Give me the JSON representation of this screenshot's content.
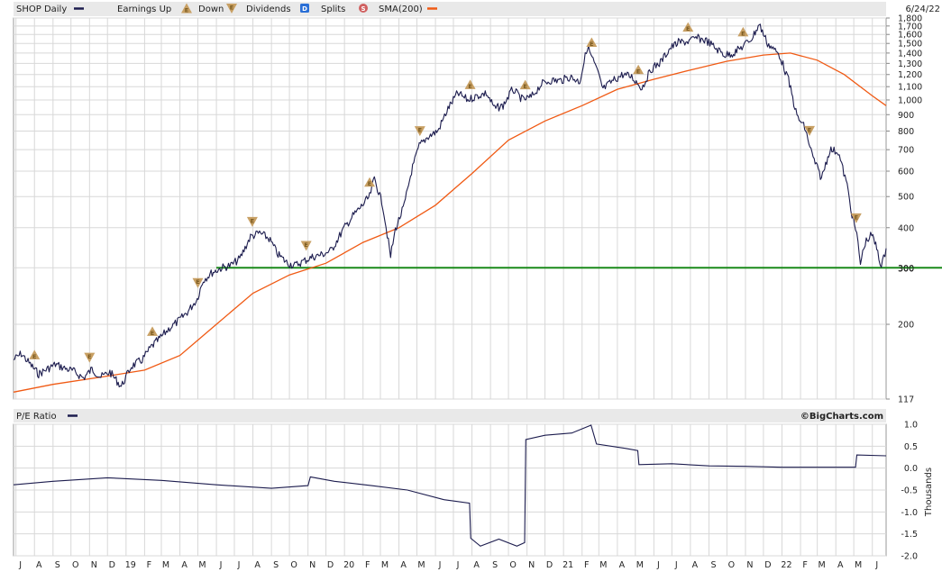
{
  "header": {
    "ticker_label": "SHOP Daily",
    "earnings_label": "Earnings Up",
    "down_label": "Down",
    "dividends_label": "Dividends",
    "splits_label": "Splits",
    "sma_label": "SMA(200)",
    "date": "6/24/22",
    "price_line_color": "#1c1c4e",
    "sma_color": "#f05a14",
    "support_line_color": "#1a8a1a",
    "earnings_icon_color": "#c8a064",
    "dividend_icon_color": "#2a6fd6",
    "split_icon_color": "#d06060",
    "earnings_icon_glyph": "E",
    "dividend_icon_glyph": "D",
    "split_icon_glyph": "S"
  },
  "lower_panel": {
    "title": "P/E Ratio",
    "brand": "©BigCharts.com",
    "y_axis_title": "Thousands"
  },
  "chart_data": [
    {
      "type": "line",
      "title": "SHOP Daily",
      "scale": "log",
      "ylim": [
        117,
        1800
      ],
      "y_ticks": [
        117,
        200,
        300,
        400,
        500,
        600,
        700,
        800,
        900,
        1000,
        1100,
        1200,
        1300,
        1400,
        1500,
        1600,
        1700,
        1800
      ],
      "y_tick_labels": [
        "117",
        "200",
        "300",
        "400",
        "500",
        "600",
        "700",
        "800",
        "900",
        "1,000",
        "1,100",
        "1,200",
        "1,300",
        "1,400",
        "1,500",
        "1,600",
        "1,700",
        "1,800"
      ],
      "x_range": [
        "2018-06-27",
        "2022-06-24"
      ],
      "x_tick_labels": [
        {
          "date": "2018-07-01",
          "label": "J"
        },
        {
          "date": "2018-08-01",
          "label": "A"
        },
        {
          "date": "2018-09-01",
          "label": "S"
        },
        {
          "date": "2018-10-01",
          "label": "O"
        },
        {
          "date": "2018-11-01",
          "label": "N"
        },
        {
          "date": "2018-12-01",
          "label": "D"
        },
        {
          "date": "2019-01-01",
          "label": "19"
        },
        {
          "date": "2019-02-01",
          "label": "F"
        },
        {
          "date": "2019-03-01",
          "label": "M"
        },
        {
          "date": "2019-04-01",
          "label": "A"
        },
        {
          "date": "2019-05-01",
          "label": "M"
        },
        {
          "date": "2019-06-01",
          "label": "J"
        },
        {
          "date": "2019-07-01",
          "label": "J"
        },
        {
          "date": "2019-08-01",
          "label": "A"
        },
        {
          "date": "2019-09-01",
          "label": "S"
        },
        {
          "date": "2019-10-01",
          "label": "O"
        },
        {
          "date": "2019-11-01",
          "label": "N"
        },
        {
          "date": "2019-12-01",
          "label": "D"
        },
        {
          "date": "2020-01-01",
          "label": "20"
        },
        {
          "date": "2020-02-01",
          "label": "F"
        },
        {
          "date": "2020-03-01",
          "label": "M"
        },
        {
          "date": "2020-04-01",
          "label": "A"
        },
        {
          "date": "2020-05-01",
          "label": "M"
        },
        {
          "date": "2020-06-01",
          "label": "J"
        },
        {
          "date": "2020-07-01",
          "label": "J"
        },
        {
          "date": "2020-08-01",
          "label": "A"
        },
        {
          "date": "2020-09-01",
          "label": "S"
        },
        {
          "date": "2020-10-01",
          "label": "O"
        },
        {
          "date": "2020-11-01",
          "label": "N"
        },
        {
          "date": "2020-12-01",
          "label": "D"
        },
        {
          "date": "2021-01-01",
          "label": "21"
        },
        {
          "date": "2021-02-01",
          "label": "F"
        },
        {
          "date": "2021-03-01",
          "label": "M"
        },
        {
          "date": "2021-04-01",
          "label": "A"
        },
        {
          "date": "2021-05-01",
          "label": "M"
        },
        {
          "date": "2021-06-01",
          "label": "J"
        },
        {
          "date": "2021-07-01",
          "label": "J"
        },
        {
          "date": "2021-08-01",
          "label": "A"
        },
        {
          "date": "2021-09-01",
          "label": "S"
        },
        {
          "date": "2021-10-01",
          "label": "O"
        },
        {
          "date": "2021-11-01",
          "label": "N"
        },
        {
          "date": "2021-12-01",
          "label": "D"
        },
        {
          "date": "2022-01-01",
          "label": "22"
        },
        {
          "date": "2022-02-01",
          "label": "F"
        },
        {
          "date": "2022-03-01",
          "label": "M"
        },
        {
          "date": "2022-04-01",
          "label": "A"
        },
        {
          "date": "2022-05-01",
          "label": "M"
        },
        {
          "date": "2022-06-01",
          "label": "J"
        }
      ],
      "reference_line": {
        "y": 300,
        "label": "300"
      },
      "series": [
        {
          "name": "SHOP Daily",
          "points": [
            [
              "2018-06-27",
              155
            ],
            [
              "2018-07-10",
              162
            ],
            [
              "2018-07-25",
              150
            ],
            [
              "2018-08-08",
              140
            ],
            [
              "2018-08-22",
              145
            ],
            [
              "2018-09-05",
              150
            ],
            [
              "2018-09-20",
              146
            ],
            [
              "2018-10-05",
              143
            ],
            [
              "2018-10-22",
              136
            ],
            [
              "2018-11-05",
              145
            ],
            [
              "2018-11-20",
              137
            ],
            [
              "2018-12-05",
              142
            ],
            [
              "2018-12-24",
              128
            ],
            [
              "2019-01-10",
              148
            ],
            [
              "2019-01-28",
              155
            ],
            [
              "2019-02-12",
              170
            ],
            [
              "2019-02-28",
              182
            ],
            [
              "2019-03-15",
              195
            ],
            [
              "2019-03-30",
              205
            ],
            [
              "2019-04-15",
              220
            ],
            [
              "2019-04-30",
              240
            ],
            [
              "2019-05-10",
              275
            ],
            [
              "2019-05-25",
              290
            ],
            [
              "2019-06-10",
              300
            ],
            [
              "2019-06-25",
              305
            ],
            [
              "2019-07-10",
              320
            ],
            [
              "2019-07-28",
              375
            ],
            [
              "2019-08-12",
              385
            ],
            [
              "2019-08-28",
              370
            ],
            [
              "2019-09-12",
              330
            ],
            [
              "2019-09-28",
              310
            ],
            [
              "2019-10-10",
              305
            ],
            [
              "2019-10-25",
              315
            ],
            [
              "2019-11-10",
              325
            ],
            [
              "2019-11-25",
              330
            ],
            [
              "2019-12-10",
              340
            ],
            [
              "2019-12-31",
              398
            ],
            [
              "2020-01-15",
              435
            ],
            [
              "2020-01-31",
              470
            ],
            [
              "2020-02-12",
              500
            ],
            [
              "2020-02-20",
              570
            ],
            [
              "2020-03-05",
              470
            ],
            [
              "2020-03-18",
              325
            ],
            [
              "2020-03-26",
              395
            ],
            [
              "2020-04-10",
              470
            ],
            [
              "2020-04-22",
              600
            ],
            [
              "2020-05-05",
              720
            ],
            [
              "2020-05-20",
              770
            ],
            [
              "2020-06-05",
              800
            ],
            [
              "2020-06-22",
              940
            ],
            [
              "2020-07-08",
              1050
            ],
            [
              "2020-07-25",
              1000
            ],
            [
              "2020-08-10",
              1030
            ],
            [
              "2020-08-25",
              1050
            ],
            [
              "2020-09-08",
              940
            ],
            [
              "2020-09-22",
              960
            ],
            [
              "2020-10-08",
              1080
            ],
            [
              "2020-10-25",
              1000
            ],
            [
              "2020-11-08",
              1020
            ],
            [
              "2020-11-25",
              1120
            ],
            [
              "2020-12-10",
              1150
            ],
            [
              "2020-12-28",
              1150
            ],
            [
              "2021-01-12",
              1180
            ],
            [
              "2021-01-28",
              1140
            ],
            [
              "2021-02-10",
              1470
            ],
            [
              "2021-02-25",
              1250
            ],
            [
              "2021-03-08",
              1080
            ],
            [
              "2021-03-25",
              1150
            ],
            [
              "2021-04-10",
              1200
            ],
            [
              "2021-04-25",
              1180
            ],
            [
              "2021-05-12",
              1090
            ],
            [
              "2021-05-28",
              1250
            ],
            [
              "2021-06-12",
              1310
            ],
            [
              "2021-06-28",
              1450
            ],
            [
              "2021-07-12",
              1510
            ],
            [
              "2021-07-28",
              1520
            ],
            [
              "2021-08-12",
              1560
            ],
            [
              "2021-08-28",
              1530
            ],
            [
              "2021-09-12",
              1450
            ],
            [
              "2021-09-28",
              1380
            ],
            [
              "2021-10-12",
              1400
            ],
            [
              "2021-10-28",
              1470
            ],
            [
              "2021-11-12",
              1560
            ],
            [
              "2021-11-24",
              1720
            ],
            [
              "2021-12-08",
              1500
            ],
            [
              "2021-12-28",
              1380
            ],
            [
              "2022-01-12",
              1150
            ],
            [
              "2022-01-26",
              890
            ],
            [
              "2022-02-08",
              820
            ],
            [
              "2022-02-22",
              660
            ],
            [
              "2022-03-08",
              570
            ],
            [
              "2022-03-22",
              700
            ],
            [
              "2022-04-05",
              690
            ],
            [
              "2022-04-20",
              540
            ],
            [
              "2022-04-28",
              440
            ],
            [
              "2022-05-06",
              380
            ],
            [
              "2022-05-12",
              310
            ],
            [
              "2022-05-20",
              360
            ],
            [
              "2022-05-31",
              380
            ],
            [
              "2022-06-10",
              340
            ],
            [
              "2022-06-16",
              300
            ],
            [
              "2022-06-24",
              345
            ]
          ]
        },
        {
          "name": "SMA(200)",
          "points": [
            [
              "2018-06-27",
              123
            ],
            [
              "2018-09-01",
              130
            ],
            [
              "2018-12-01",
              138
            ],
            [
              "2019-02-01",
              144
            ],
            [
              "2019-04-01",
              160
            ],
            [
              "2019-06-01",
              200
            ],
            [
              "2019-08-01",
              250
            ],
            [
              "2019-10-01",
              285
            ],
            [
              "2019-12-01",
              310
            ],
            [
              "2020-02-01",
              360
            ],
            [
              "2020-04-01",
              400
            ],
            [
              "2020-06-01",
              470
            ],
            [
              "2020-08-01",
              590
            ],
            [
              "2020-10-01",
              750
            ],
            [
              "2020-12-01",
              860
            ],
            [
              "2021-02-01",
              960
            ],
            [
              "2021-04-01",
              1080
            ],
            [
              "2021-06-01",
              1160
            ],
            [
              "2021-08-01",
              1240
            ],
            [
              "2021-10-01",
              1320
            ],
            [
              "2021-12-01",
              1380
            ],
            [
              "2022-01-15",
              1400
            ],
            [
              "2022-03-01",
              1330
            ],
            [
              "2022-04-15",
              1200
            ],
            [
              "2022-06-01",
              1030
            ],
            [
              "2022-06-24",
              960
            ]
          ]
        }
      ],
      "events": [
        {
          "type": "earnings_up",
          "date": "2018-08-01"
        },
        {
          "type": "earnings_down",
          "date": "2018-11-01"
        },
        {
          "type": "earnings_up",
          "date": "2019-02-14"
        },
        {
          "type": "earnings_down",
          "date": "2019-05-01"
        },
        {
          "type": "earnings_down",
          "date": "2019-07-31"
        },
        {
          "type": "earnings_down",
          "date": "2019-10-29"
        },
        {
          "type": "earnings_up",
          "date": "2020-02-12"
        },
        {
          "type": "earnings_down",
          "date": "2020-05-06"
        },
        {
          "type": "earnings_up",
          "date": "2020-07-29"
        },
        {
          "type": "earnings_up",
          "date": "2020-10-29"
        },
        {
          "type": "earnings_up",
          "date": "2021-02-17"
        },
        {
          "type": "earnings_up",
          "date": "2021-05-06"
        },
        {
          "type": "earnings_up",
          "date": "2021-07-28"
        },
        {
          "type": "earnings_up",
          "date": "2021-10-28"
        },
        {
          "type": "earnings_down",
          "date": "2022-02-16"
        },
        {
          "type": "earnings_down",
          "date": "2022-05-05"
        }
      ]
    },
    {
      "type": "line",
      "title": "P/E Ratio",
      "ylabel": "Thousands",
      "ylim": [
        -2.0,
        1.0
      ],
      "y_ticks": [
        1.0,
        0.5,
        0.0,
        -0.5,
        -1.0,
        -1.5,
        -2.0
      ],
      "y_tick_labels": [
        "1.0",
        "0.5",
        "0.0",
        "-0.5",
        "-1.0",
        "-1.5",
        "-2.0"
      ],
      "series": [
        {
          "name": "P/E Ratio",
          "points": [
            [
              "2018-06-27",
              -0.38
            ],
            [
              "2018-09-01",
              -0.3
            ],
            [
              "2018-12-01",
              -0.22
            ],
            [
              "2019-03-01",
              -0.28
            ],
            [
              "2019-06-01",
              -0.38
            ],
            [
              "2019-09-01",
              -0.46
            ],
            [
              "2019-11-01",
              -0.4
            ],
            [
              "2019-11-05",
              -0.2
            ],
            [
              "2019-12-15",
              -0.3
            ],
            [
              "2020-02-15",
              -0.4
            ],
            [
              "2020-04-15",
              -0.5
            ],
            [
              "2020-06-15",
              -0.72
            ],
            [
              "2020-07-28",
              -0.8
            ],
            [
              "2020-07-30",
              -1.6
            ],
            [
              "2020-08-15",
              -1.78
            ],
            [
              "2020-09-15",
              -1.62
            ],
            [
              "2020-10-15",
              -1.78
            ],
            [
              "2020-10-28",
              -1.7
            ],
            [
              "2020-10-30",
              0.65
            ],
            [
              "2020-12-01",
              0.75
            ],
            [
              "2021-01-15",
              0.8
            ],
            [
              "2021-02-16",
              0.98
            ],
            [
              "2021-02-25",
              0.55
            ],
            [
              "2021-04-15",
              0.45
            ],
            [
              "2021-05-05",
              0.4
            ],
            [
              "2021-05-07",
              0.08
            ],
            [
              "2021-07-01",
              0.1
            ],
            [
              "2021-09-01",
              0.05
            ],
            [
              "2021-11-01",
              0.04
            ],
            [
              "2022-01-01",
              0.02
            ],
            [
              "2022-05-04",
              0.02
            ],
            [
              "2022-05-06",
              0.3
            ],
            [
              "2022-06-24",
              0.28
            ]
          ]
        }
      ]
    }
  ]
}
